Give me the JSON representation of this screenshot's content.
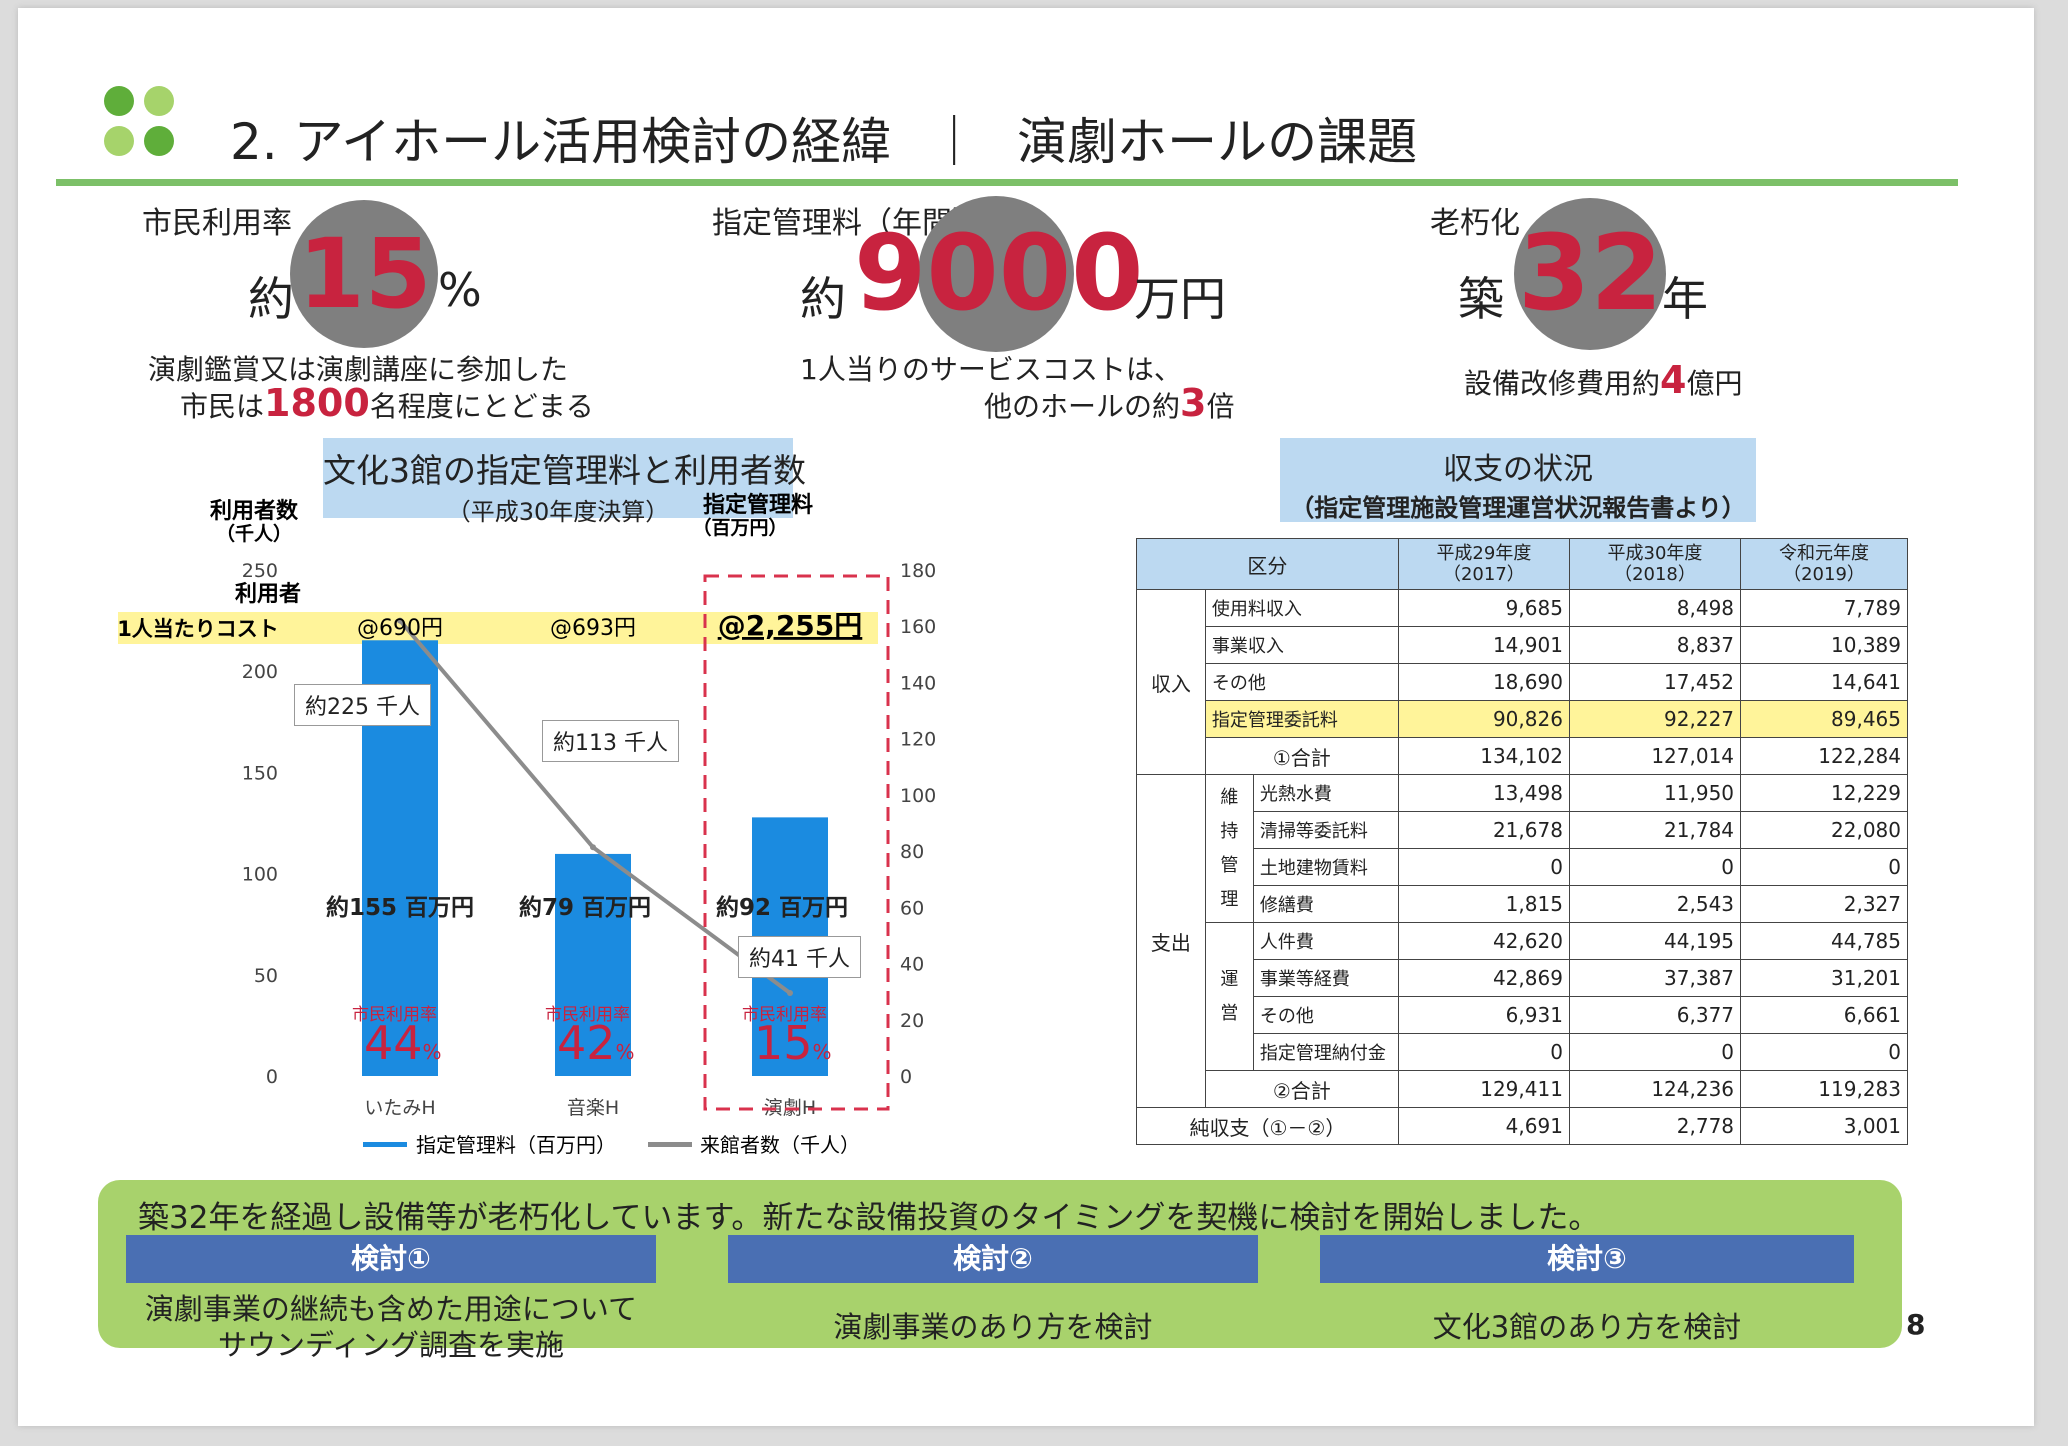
{
  "header": {
    "title_left": "2. アイホール活用検討の経緯",
    "separator": "｜",
    "title_right": "演劇ホールの課題",
    "colors": {
      "accent_green": "#7cc068",
      "logo_dark": "#5fae3a",
      "logo_light": "#a6d36b"
    }
  },
  "kpis": [
    {
      "label": "市民利用率",
      "prefix": "約",
      "value": "15",
      "unit": "%",
      "desc_line1": "演劇鑑賞又は演劇講座に参加した",
      "desc_line2_pre": "市民は",
      "desc_line2_num": "1800",
      "desc_line2_post": "名程度にとどまる"
    },
    {
      "label": "指定管理料（年間）",
      "prefix": "約",
      "value": "9000",
      "unit": "万円",
      "desc_line1": "1人当りのサービスコストは、",
      "desc_line2_pre": "他のホールの約",
      "desc_line2_num": "3",
      "desc_line2_post": "倍"
    },
    {
      "label": "老朽化",
      "prefix": "築",
      "value": "32",
      "unit": "年",
      "desc_line1_pre": "設備改修費用約",
      "desc_line1_num": "4",
      "desc_line1_post": "億円"
    }
  ],
  "chart_box": {
    "title": "文化3館の指定管理料と利用者数",
    "subtitle": "（平成30年度決算）"
  },
  "chart_data": {
    "type": "bar",
    "categories": [
      "いたみH",
      "音楽H",
      "演劇H"
    ],
    "series": [
      {
        "name": "指定管理料（百万円）",
        "type": "bar",
        "axis": "right",
        "values": [
          155,
          79,
          92
        ]
      },
      {
        "name": "来館者数（千人）",
        "type": "line",
        "axis": "left",
        "values": [
          225,
          113,
          41
        ]
      }
    ],
    "left_axis": {
      "label_line1": "利用者数",
      "label_line2": "（千人）",
      "ticks": [
        0,
        50,
        100,
        150,
        200,
        250
      ],
      "ylim": [
        0,
        250
      ]
    },
    "right_axis": {
      "label_line1": "指定管理料",
      "label_line2": "（百万円）",
      "ticks": [
        0,
        20,
        40,
        60,
        80,
        100,
        120,
        140,
        160,
        180
      ],
      "ylim": [
        0,
        180
      ]
    },
    "cost_row": {
      "label_line1": "利用者",
      "label_line2": "1人当たりコスト",
      "values": [
        "@690円",
        "@693円",
        "@2,255円"
      ]
    },
    "bar_labels": [
      "約155 百万円",
      "約79 百万円",
      "約92 百万円"
    ],
    "line_labels": [
      "約225 千人",
      "約113 千人",
      "約41 千人"
    ],
    "rate_label": "市民利用率",
    "rates": [
      "44",
      "42",
      "15"
    ],
    "rate_unit": "%",
    "highlight": "演劇H",
    "colors": {
      "bar": "#1b8be0",
      "line": "#8c8c8c",
      "cost_band": "#fff49a",
      "highlight_border": "#d9324d"
    }
  },
  "finance_box": {
    "title": "収支の状況",
    "subtitle": "（指定管理施設管理運営状況報告書より）"
  },
  "finance_table": {
    "header": {
      "category": "区分",
      "years": [
        {
          "line1": "平成29年度",
          "line2": "（2017）"
        },
        {
          "line1": "平成30年度",
          "line2": "（2018）"
        },
        {
          "line1": "令和元年度",
          "line2": "（2019）"
        }
      ]
    },
    "income_label": "収入",
    "income_rows": [
      {
        "label": "使用料収入",
        "values": [
          "9,685",
          "8,498",
          "7,789"
        ]
      },
      {
        "label": "事業収入",
        "values": [
          "14,901",
          "8,837",
          "10,389"
        ]
      },
      {
        "label": "その他",
        "values": [
          "18,690",
          "17,452",
          "14,641"
        ]
      },
      {
        "label": "指定管理委託料",
        "values": [
          "90,826",
          "92,227",
          "89,465"
        ]
      }
    ],
    "income_total": {
      "label": "①合計",
      "values": [
        "134,102",
        "127,014",
        "122,284"
      ]
    },
    "expense_label": "支出",
    "maintenance_label": [
      "維",
      "持",
      "管",
      "理"
    ],
    "maintenance_rows": [
      {
        "label": "光熱水費",
        "values": [
          "13,498",
          "11,950",
          "12,229"
        ]
      },
      {
        "label": "清掃等委託料",
        "values": [
          "21,678",
          "21,784",
          "22,080"
        ]
      },
      {
        "label": "土地建物賃料",
        "values": [
          "0",
          "0",
          "0"
        ]
      },
      {
        "label": "修繕費",
        "values": [
          "1,815",
          "2,543",
          "2,327"
        ]
      }
    ],
    "operation_label": [
      "運",
      "営"
    ],
    "operation_rows": [
      {
        "label": "人件費",
        "values": [
          "42,620",
          "44,195",
          "44,785"
        ]
      },
      {
        "label": "事業等経費",
        "values": [
          "42,869",
          "37,387",
          "31,201"
        ]
      },
      {
        "label": "その他",
        "values": [
          "6,931",
          "6,377",
          "6,661"
        ]
      },
      {
        "label": "指定管理納付金",
        "values": [
          "0",
          "0",
          "0"
        ]
      }
    ],
    "expense_total": {
      "label": "②合計",
      "values": [
        "129,411",
        "124,236",
        "119,283"
      ]
    },
    "net": {
      "label": "純収支（①－②）",
      "values": [
        "4,691",
        "2,778",
        "3,001"
      ]
    }
  },
  "bottom": {
    "headline": "築32年を経過し設備等が老朽化しています。新たな設備投資のタイミングを契機に検討を開始しました。",
    "items": [
      {
        "title": "検討①",
        "line1": "演劇事業の継続も含めた用途について",
        "line2": "サウンディング調査を実施"
      },
      {
        "title": "検討②",
        "line1": "演劇事業のあり方を検討",
        "line2": ""
      },
      {
        "title": "検討③",
        "line1": "文化3館のあり方を検討",
        "line2": ""
      }
    ]
  },
  "page_number": "8"
}
